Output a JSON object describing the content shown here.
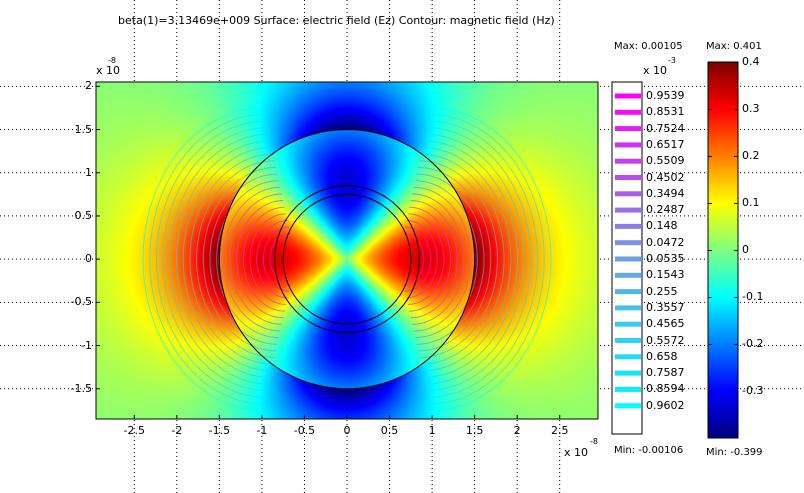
{
  "chart_data": {
    "type": "heatmap",
    "title": "beta(1)=3.13469e+009  Surface: electric field (Ez)  Contour: magnetic field (Hz)",
    "x_axis": {
      "ticks": [
        -2.5,
        -2,
        -1.5,
        -1,
        -0.5,
        0,
        0.5,
        1,
        1.5,
        2,
        2.5
      ],
      "tick_labels": [
        "-2.5",
        "-2",
        "-1.5",
        "-1",
        "-0.5",
        "0",
        "0.5",
        "1",
        "1.5",
        "2",
        "2.5"
      ],
      "range": [
        -2.95,
        2.95
      ],
      "multiplier_base": "x 10",
      "multiplier_exp": "-8"
    },
    "y_axis": {
      "ticks": [
        -1.5,
        -1,
        -0.5,
        0,
        0.5,
        1,
        1.5,
        2
      ],
      "tick_labels": [
        "-1.5",
        "-1",
        "-0.5",
        "0",
        "0.5",
        "1",
        "1.5",
        "2"
      ],
      "range": [
        -1.85,
        2.05
      ],
      "multiplier_base": "x 10",
      "multiplier_exp": "-8"
    },
    "grid": true,
    "geometry": {
      "outer_circle_radius": 1.5,
      "inner_circle_radii": [
        0.75,
        0.85
      ]
    },
    "surface": {
      "name": "electric field (Ez)",
      "max_label": "Max: 0.401",
      "min_label": "Min: -0.399",
      "max": 0.401,
      "min": -0.399,
      "colorbar_ticks": [
        0.4,
        0.3,
        0.2,
        0.1,
        0,
        -0.1,
        -0.2,
        -0.3
      ],
      "colorbar_tick_labels": [
        "0.4",
        "0.3",
        "0.2",
        "0.1",
        "0",
        "-0.1",
        "-0.2",
        "-0.3"
      ]
    },
    "contour": {
      "name": "magnetic field (Hz)",
      "max_label": "Max: 0.00105",
      "min_label": "Min: -0.00106",
      "max": 0.00105,
      "min": -0.00106,
      "legend_multiplier_base": "x 10",
      "legend_multiplier_exp": "-3",
      "levels": [
        "0.9539",
        "0.8531",
        "0.7524",
        "0.6517",
        "0.5509",
        "0.4502",
        "0.3494",
        "0.2487",
        "0.148",
        "0.0472",
        "0.0535",
        "0.1543",
        "0.255",
        "0.3557",
        "0.4565",
        "0.5572",
        "0.658",
        "0.7587",
        "0.8594",
        "0.9602"
      ],
      "level_colors": [
        "#ff00ff",
        "#f20cfc",
        "#e21ef8",
        "#d22ff4",
        "#c33ff1",
        "#b44fee",
        "#a55fea",
        "#9870e7",
        "#8a80e4",
        "#7d90e1",
        "#6f9fdf",
        "#62abe2",
        "#55b6e5",
        "#48c0e8",
        "#3bcaeb",
        "#2ed3ee",
        "#22dbf1",
        "#17e3f5",
        "#0cebf9",
        "#00ffff"
      ]
    }
  }
}
